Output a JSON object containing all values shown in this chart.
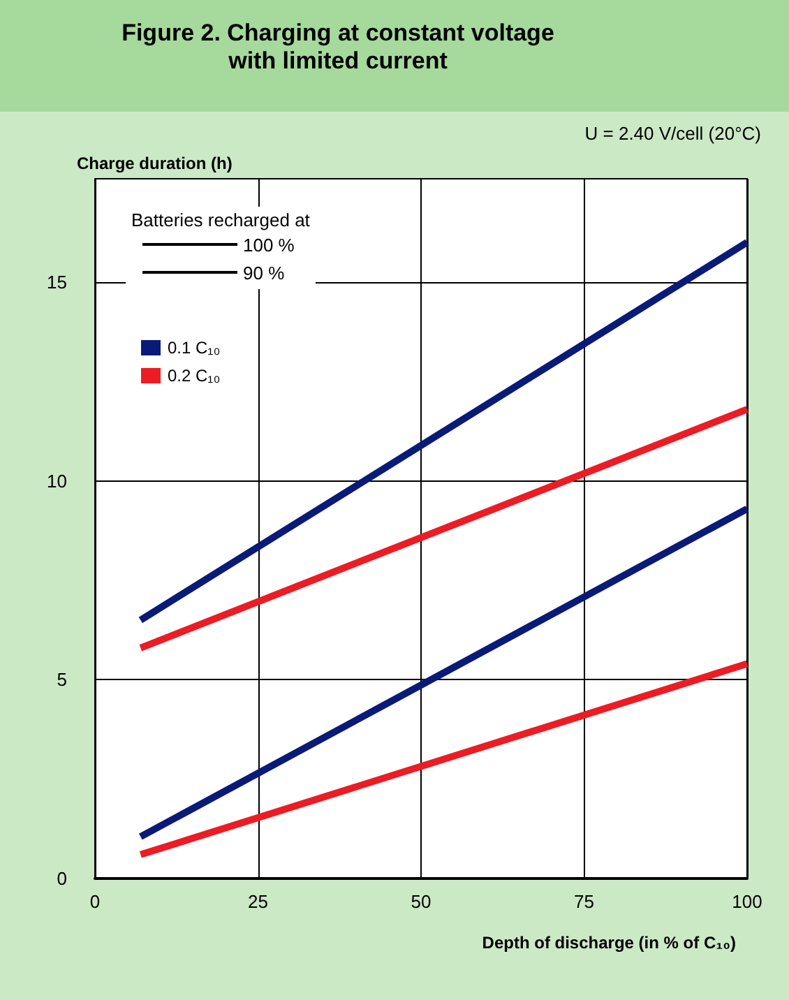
{
  "chart_data": {
    "type": "line",
    "title": "Figure 2. Charging at constant voltage\nwith limited current",
    "subtitle": "U = 2.40 V/cell (20°C)",
    "xlabel": "Depth of discharge (in % of C₁₀)",
    "ylabel": "Charge duration (h)",
    "legend_title": "Batteries recharged at",
    "annotations": [
      "100 %",
      "90 %"
    ],
    "x": [
      7,
      100
    ],
    "series": [
      {
        "name": "0.1 C₁₀",
        "color": "#0a1a78",
        "values": [
          6.5,
          16.0
        ]
      },
      {
        "name": "0.2 C₁₀",
        "color": "#ec1c24",
        "values": [
          5.8,
          11.8
        ]
      },
      {
        "color": "#0a1a78",
        "values": [
          1.05,
          9.3
        ]
      },
      {
        "color": "#ec1c24",
        "values": [
          0.6,
          5.4
        ]
      }
    ],
    "xlim": [
      0,
      100
    ],
    "xticks": [
      0,
      25,
      50,
      75,
      100
    ],
    "ylim": [
      0,
      17.6
    ],
    "yticks": [
      0,
      5,
      10,
      15
    ],
    "grid": true,
    "legend": "top left",
    "line_style": "solid"
  }
}
